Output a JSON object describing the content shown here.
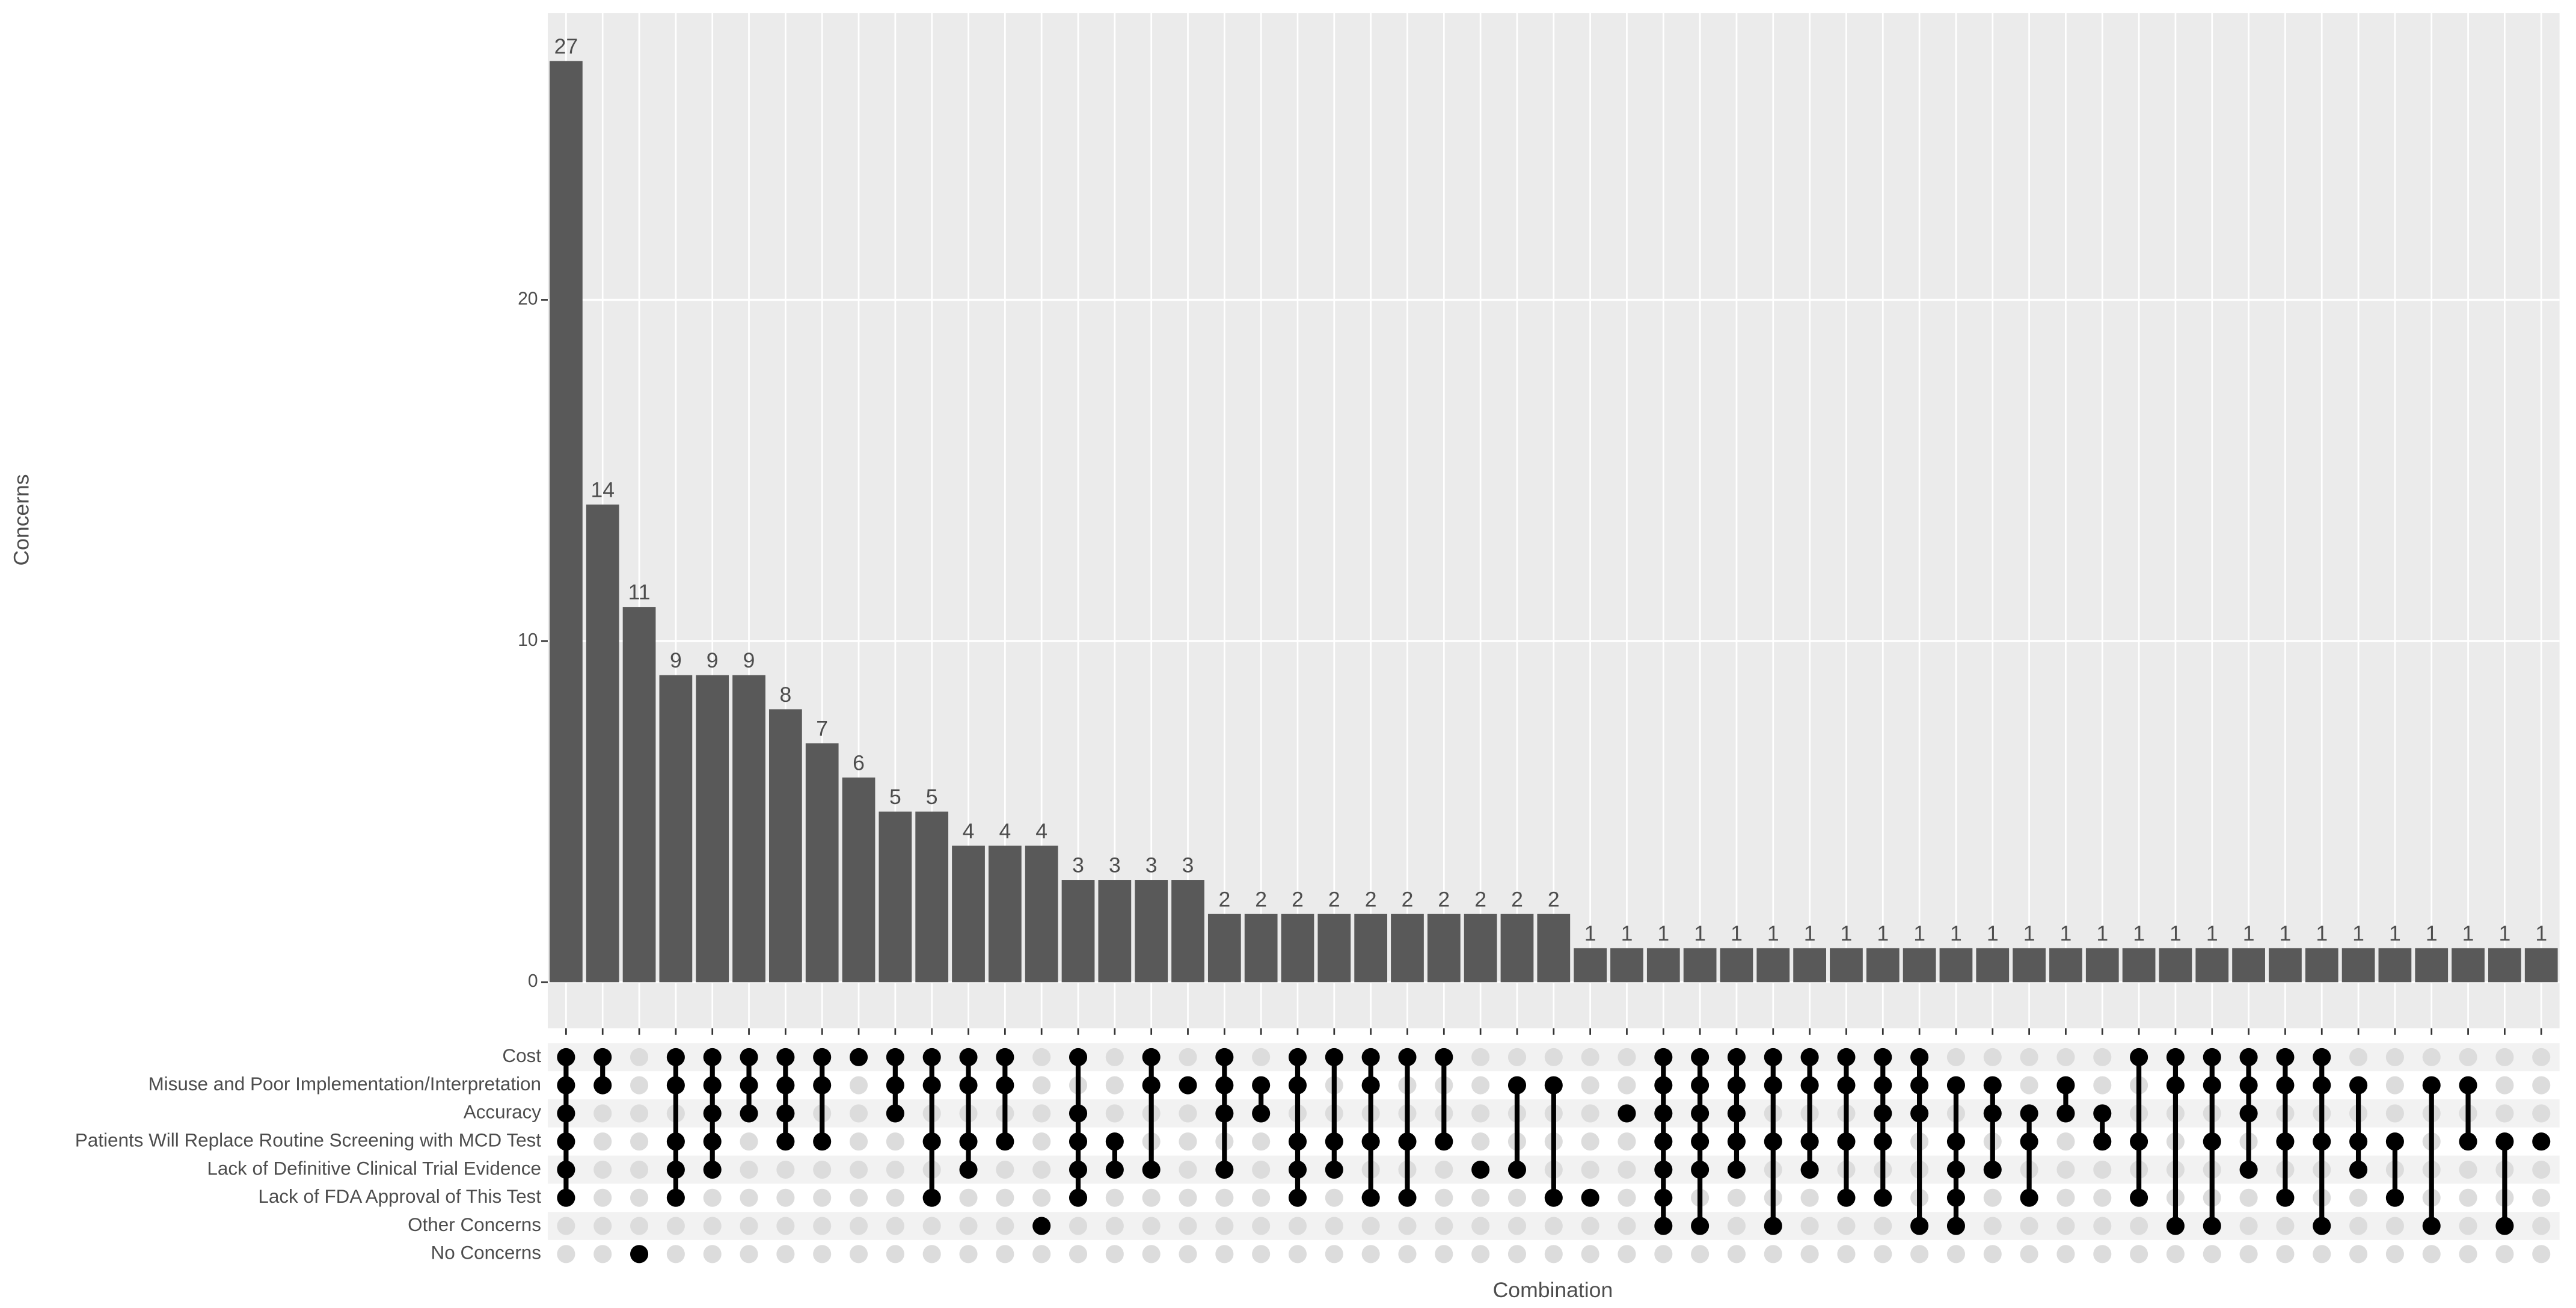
{
  "chart_data": {
    "type": "upset",
    "y_label": "Concerns",
    "x_label": "Combination",
    "sets": [
      "Cost",
      "Misuse and Poor Implementation/Interpretation",
      "Accuracy",
      "Patients Will Replace Routine Screening with MCD Test",
      "Lack of Definitive Clinical Trial Evidence",
      "Lack of FDA Approval of This Test",
      "Other Concerns",
      "No Concerns"
    ],
    "values": [
      27,
      14,
      11,
      9,
      9,
      9,
      8,
      7,
      6,
      5,
      5,
      4,
      4,
      4,
      3,
      3,
      3,
      3,
      2,
      2,
      2,
      2,
      2,
      2,
      2,
      2,
      2,
      2,
      1,
      1,
      1,
      1,
      1,
      1,
      1,
      1,
      1,
      1,
      1,
      1,
      1,
      1,
      1,
      1,
      1,
      1,
      1,
      1,
      1,
      1,
      1,
      1,
      1,
      1,
      1
    ],
    "membership": [
      [
        0,
        1,
        2,
        3,
        4,
        5
      ],
      [
        0,
        1
      ],
      [
        7
      ],
      [
        0,
        1,
        3,
        4,
        5
      ],
      [
        0,
        1,
        2,
        3,
        4
      ],
      [
        0,
        1,
        2
      ],
      [
        0,
        1,
        2,
        3
      ],
      [
        0,
        1,
        3
      ],
      [
        0
      ],
      [
        0,
        1,
        2
      ],
      [
        0,
        1,
        3,
        5
      ],
      [
        0,
        1,
        3,
        4
      ],
      [
        0,
        1,
        3
      ],
      [
        6
      ],
      [
        0,
        2,
        3,
        4,
        5
      ],
      [
        3,
        4
      ],
      [
        0,
        1,
        4
      ],
      [
        1
      ],
      [
        0,
        1,
        2,
        4
      ],
      [
        1,
        2
      ],
      [
        0,
        1,
        3,
        4,
        5
      ],
      [
        0,
        3,
        4
      ],
      [
        0,
        1,
        3,
        5
      ],
      [
        0,
        3,
        5
      ],
      [
        0,
        3
      ],
      [
        4
      ],
      [
        1,
        4
      ],
      [
        1,
        5
      ],
      [
        5
      ],
      [
        2
      ],
      [
        0,
        1,
        2,
        3,
        4,
        5,
        6
      ],
      [
        0,
        1,
        2,
        3,
        4,
        6
      ],
      [
        0,
        1,
        2,
        3,
        4
      ],
      [
        0,
        1,
        3,
        6
      ],
      [
        0,
        1,
        3,
        4
      ],
      [
        0,
        1,
        3,
        5
      ],
      [
        0,
        1,
        2,
        3,
        5
      ],
      [
        0,
        1,
        2,
        6
      ],
      [
        1,
        3,
        4,
        5,
        6
      ],
      [
        1,
        2,
        4
      ],
      [
        2,
        3,
        5
      ],
      [
        1,
        2
      ],
      [
        2,
        3
      ],
      [
        0,
        3,
        5
      ],
      [
        0,
        1,
        6
      ],
      [
        0,
        1,
        3,
        6
      ],
      [
        0,
        1,
        2,
        4
      ],
      [
        0,
        1,
        3,
        5
      ],
      [
        0,
        1,
        3,
        6
      ],
      [
        1,
        3,
        4
      ],
      [
        3,
        5
      ],
      [
        1,
        6
      ],
      [
        1,
        3
      ],
      [
        3,
        6
      ],
      [
        3
      ]
    ],
    "ylim": [
      -1.35,
      28.4
    ],
    "yticks": [
      0,
      10,
      20
    ],
    "bar_color": "#595959",
    "dot_color": "#000000",
    "grid": true
  }
}
